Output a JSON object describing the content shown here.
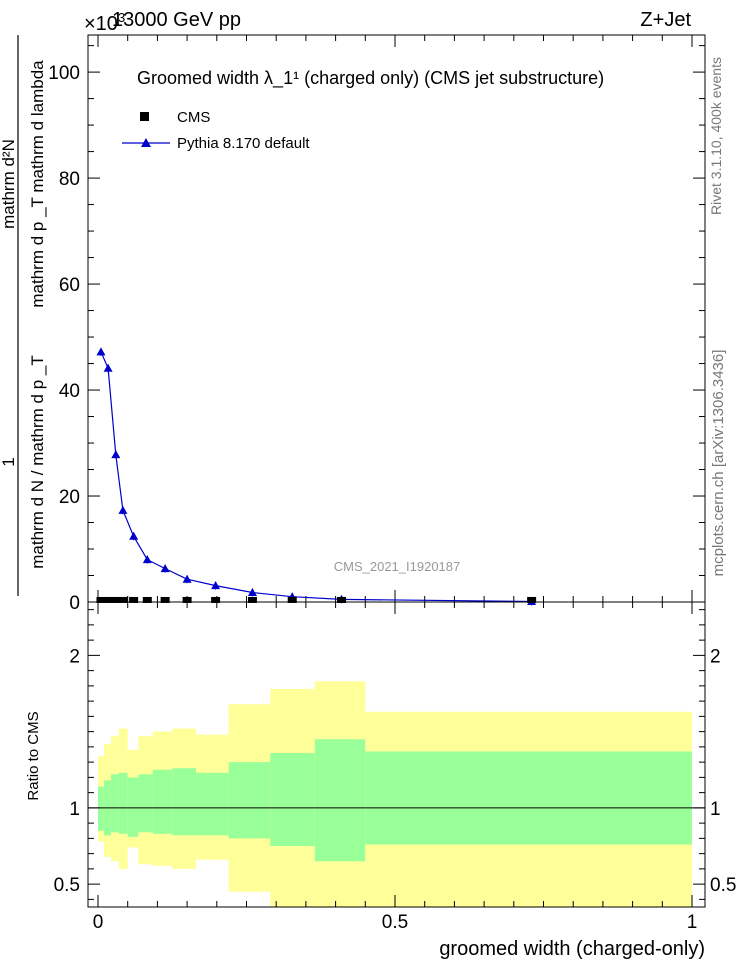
{
  "header": {
    "left": "13000 GeV pp",
    "right": "Z+Jet",
    "exponent_prefix": "×10",
    "exponent": "3"
  },
  "side_texts": {
    "rivet": "Rivet 3.1.10,  400k events",
    "mcplots": "mcplots.cern.ch [arXiv:1306.3436]"
  },
  "analysis_id": "CMS_2021_I1920187",
  "legend": {
    "title": "Groomed width  λ_1¹  (charged only) (CMS jet substructure)",
    "cms": "CMS",
    "mc": "Pythia 8.170 default"
  },
  "colors": {
    "mc": "#0000cc",
    "band_inner": "#99ff99",
    "band_outer": "#ffff99",
    "data": "#000000"
  },
  "chart_data": [
    {
      "type": "line",
      "title": "Groomed width λ_1^1 (charged only) (CMS jet substructure)",
      "ylabel": "1 / mathrm d N / mathrm d p_T  mathrm d²N / mathrm d p_T mathrm d lambda",
      "ylabel_parts": {
        "numerator": "1",
        "denominator": "mathrm d N / mathrm d p _T",
        "right_numerator": "mathrm d²N",
        "right_denominator": "mathrm d p _T mathrm d lambda"
      },
      "xlim": [
        0,
        1
      ],
      "ylim": [
        0,
        107
      ],
      "y_scale_note": "×10^3",
      "y_ticks": [
        "0",
        "20",
        "40",
        "60",
        "80",
        "100"
      ],
      "series": [
        {
          "name": "Pythia 8.170 default",
          "x": [
            0.005,
            0.017,
            0.03,
            0.042,
            0.06,
            0.083,
            0.113,
            0.15,
            0.198,
            0.26,
            0.327,
            0.41,
            0.73
          ],
          "y": [
            47.2,
            44.1,
            27.8,
            17.3,
            12.4,
            8.0,
            6.3,
            4.3,
            3.1,
            1.8,
            1.0,
            0.5,
            0.1
          ]
        },
        {
          "name": "CMS",
          "x": [
            0.005,
            0.017,
            0.03,
            0.042,
            0.06,
            0.083,
            0.113,
            0.15,
            0.198,
            0.26,
            0.327,
            0.41,
            0.73
          ],
          "y": [
            0.1,
            0.1,
            0.1,
            0.1,
            0.1,
            0.1,
            0.1,
            0.1,
            0.1,
            0.1,
            0.1,
            0.1,
            0.1
          ]
        }
      ]
    },
    {
      "type": "area",
      "ylabel": "Ratio to CMS",
      "xlabel": "groomed width (charged-only)",
      "xlim": [
        0,
        1
      ],
      "ylim": [
        0.35,
        2.35
      ],
      "x_ticks": [
        "0",
        "0.5",
        "1"
      ],
      "y_ticks": [
        "0.5",
        "1",
        "2"
      ],
      "bins": [
        0,
        0.01,
        0.022,
        0.035,
        0.05,
        0.068,
        0.092,
        0.125,
        0.165,
        0.22,
        0.29,
        0.365,
        0.45,
        1.0
      ],
      "inner_band": {
        "low": [
          0.85,
          0.82,
          0.84,
          0.83,
          0.81,
          0.84,
          0.83,
          0.82,
          0.82,
          0.8,
          0.75,
          0.65,
          0.76
        ],
        "high": [
          1.14,
          1.18,
          1.22,
          1.23,
          1.2,
          1.22,
          1.25,
          1.26,
          1.23,
          1.3,
          1.36,
          1.45,
          1.37
        ]
      },
      "outer_band": {
        "low": [
          0.78,
          0.68,
          0.65,
          0.6,
          0.74,
          0.63,
          0.62,
          0.6,
          0.66,
          0.45,
          0.32,
          0.32,
          0.33
        ],
        "high": [
          1.34,
          1.42,
          1.47,
          1.52,
          1.38,
          1.47,
          1.5,
          1.52,
          1.48,
          1.68,
          1.78,
          1.83,
          1.63
        ]
      },
      "reference_line": 1.0
    }
  ]
}
